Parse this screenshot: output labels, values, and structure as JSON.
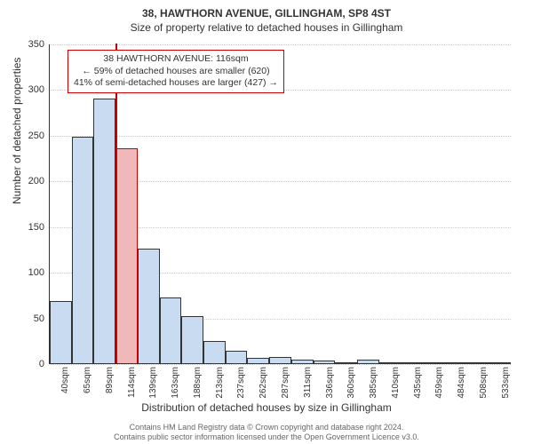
{
  "chart": {
    "type": "histogram",
    "title": "38, HAWTHORN AVENUE, GILLINGHAM, SP8 4ST",
    "subtitle": "Size of property relative to detached houses in Gillingham",
    "xlabel": "Distribution of detached houses by size in Gillingham",
    "ylabel": "Number of detached properties",
    "ylim": [
      0,
      350
    ],
    "ytick_step": 50,
    "background_color": "#ffffff",
    "grid_color": "#c8c8c8",
    "axis_color": "#333333",
    "bar_fill": "#c8dbf0",
    "bar_border": "#333333",
    "highlight_fill": "#f0b8b8",
    "highlight_border": "#cc0000",
    "categories": [
      "40sqm",
      "65sqm",
      "89sqm",
      "114sqm",
      "139sqm",
      "163sqm",
      "188sqm",
      "213sqm",
      "237sqm",
      "262sqm",
      "287sqm",
      "311sqm",
      "336sqm",
      "360sqm",
      "385sqm",
      "410sqm",
      "435sqm",
      "459sqm",
      "484sqm",
      "508sqm",
      "533sqm"
    ],
    "values": [
      68,
      248,
      290,
      235,
      125,
      72,
      52,
      24,
      14,
      6,
      7,
      4,
      3,
      1,
      4,
      1,
      1,
      1,
      1,
      1,
      1
    ],
    "highlight_index": 3,
    "marker": {
      "line1": "38 HAWTHORN AVENUE: 116sqm",
      "line2": "← 59% of detached houses are smaller (620)",
      "line3": "41% of semi-detached houses are larger (427) →"
    },
    "attribution": {
      "line1": "Contains HM Land Registry data © Crown copyright and database right 2024.",
      "line2": "Contains public sector information licensed under the Open Government Licence v3.0."
    },
    "title_fontsize": 12,
    "subtitle_fontsize": 12,
    "label_fontsize": 12,
    "tick_fontsize": 11,
    "xtick_fontsize": 10,
    "annot_fontsize": 10.5,
    "attribution_fontsize": 9
  }
}
